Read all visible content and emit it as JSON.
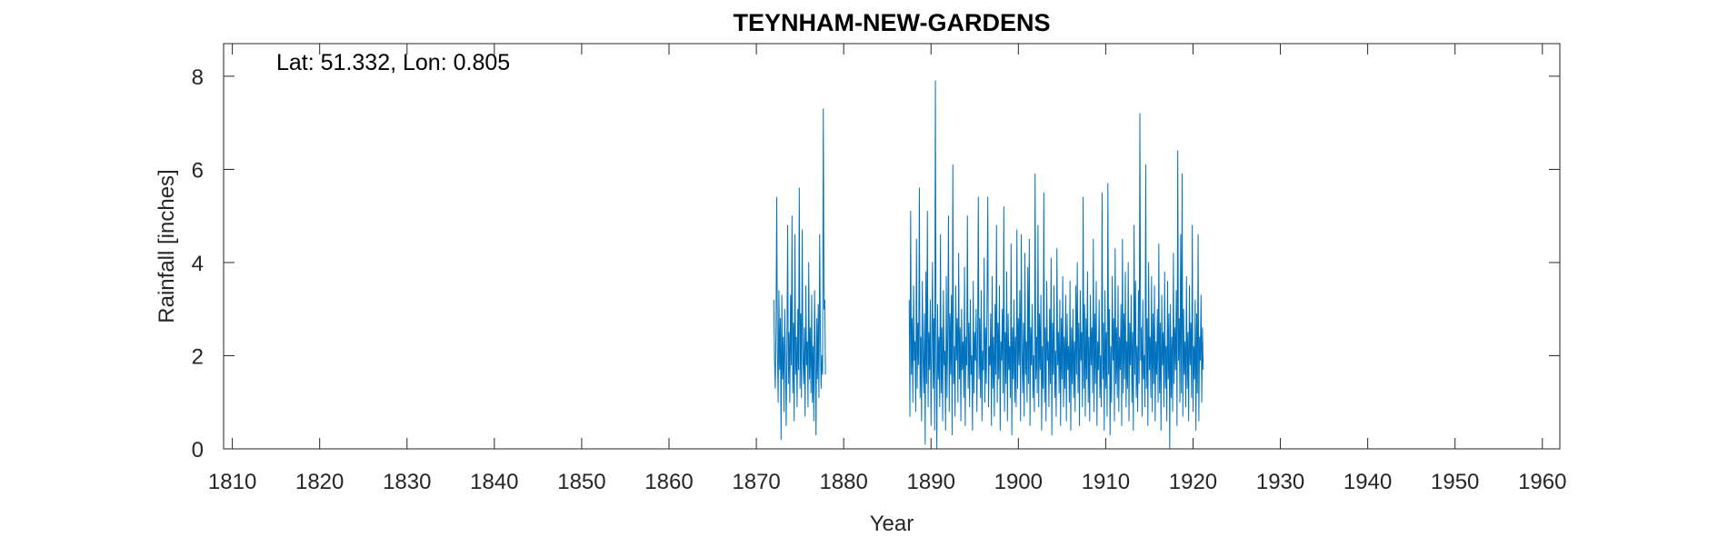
{
  "chart_data": {
    "type": "line",
    "title": "TEYNHAM-NEW-GARDENS",
    "xlabel": "Year",
    "ylabel": "Rainfall [inches]",
    "annotation": "Lat: 51.332, Lon: 0.805",
    "xlim": [
      1809,
      1962
    ],
    "ylim": [
      0,
      8.7
    ],
    "x_ticks": [
      1810,
      1820,
      1830,
      1840,
      1850,
      1860,
      1870,
      1880,
      1890,
      1900,
      1910,
      1920,
      1930,
      1940,
      1950,
      1960
    ],
    "y_ticks": [
      0,
      2,
      4,
      6,
      8
    ],
    "grid": false,
    "line_color": "#0072BD",
    "series": [
      {
        "segments": [
          {
            "start": 1872.0,
            "step": 0.083333,
            "values": [
              3.2,
              1.9,
              1.3,
              2.6,
              5.4,
              2.1,
              1.0,
              3.4,
              1.7,
              2.8,
              0.2,
              3.3,
              1.5,
              2.4,
              0.8,
              3.0,
              1.9,
              0.5,
              2.2,
              4.8,
              1.4,
              2.5,
              1.0,
              3.3,
              1.8,
              5.0,
              1.2,
              2.7,
              0.6,
              4.6,
              1.6,
              2.4,
              0.9,
              3.0,
              1.7,
              5.6,
              1.3,
              2.9,
              1.1,
              4.7,
              2.0,
              1.4,
              2.6,
              0.7,
              3.5,
              1.8,
              2.3,
              0.9,
              4.0,
              1.5,
              2.6,
              1.2,
              3.3,
              1.0,
              2.2,
              0.6,
              3.4,
              1.9,
              0.3,
              2.8,
              1.5,
              3.1,
              1.1,
              4.6,
              2.4,
              1.3,
              2.0,
              1.6,
              7.3,
              3.0,
              3.2,
              1.6
            ]
          },
          {
            "start": 1887.5,
            "step": 0.083333,
            "values": [
              3.2,
              0.7,
              5.1,
              1.6,
              2.8,
              1.0,
              3.5,
              1.9,
              2.3,
              0.8,
              4.5,
              1.3,
              2.7,
              1.8,
              5.6,
              1.1,
              2.4,
              0.6,
              3.6,
              2.0,
              1.2,
              2.9,
              0.1,
              3.8,
              1.4,
              5.1,
              0.9,
              2.5,
              1.7,
              3.2,
              0.5,
              2.2,
              4.0,
              1.3,
              2.8,
              0.4,
              7.9,
              1.9,
              0.0,
              3.1,
              1.5,
              2.4,
              0.9,
              4.6,
              1.2,
              2.6,
              0.6,
              3.4,
              1.8,
              2.1,
              0.4,
              3.7,
              1.1,
              2.5,
              5.0,
              0.8,
              2.9,
              1.6,
              3.3,
              0.3,
              6.1,
              1.4,
              2.2,
              0.7,
              3.5,
              1.9,
              2.8,
              1.0,
              4.2,
              1.5,
              2.6,
              0.6,
              3.0,
              1.7,
              2.3,
              1.1,
              3.9,
              0.5,
              2.4,
              1.8,
              5.0,
              1.3,
              2.7,
              0.9,
              3.2,
              1.6,
              2.0,
              0.4,
              3.6,
              1.2,
              2.5,
              1.9,
              3.0,
              0.8,
              2.3,
              5.4,
              1.5,
              2.8,
              1.1,
              3.4,
              0.6,
              2.1,
              1.7,
              4.1,
              1.0,
              2.6,
              1.4,
              3.3,
              5.4,
              0.9,
              2.2,
              1.8,
              2.9,
              0.5,
              3.7,
              1.3,
              2.4,
              0.7,
              3.1,
              1.6,
              4.8,
              1.0,
              2.7,
              1.5,
              3.5,
              0.4,
              2.3,
              1.9,
              3.0,
              1.2,
              5.2,
              0.8,
              2.5,
              1.4,
              3.8,
              0.6,
              2.9,
              1.7,
              2.2,
              1.1,
              4.4,
              0.3,
              2.6,
              1.5,
              3.2,
              1.0,
              2.4,
              0.9,
              4.7,
              1.3,
              2.8,
              1.8,
              3.4,
              0.6,
              4.6,
              2.1,
              1.2,
              2.7,
              0.7,
              4.2,
              1.6,
              2.3,
              1.0,
              3.9,
              1.4,
              4.5,
              0.5,
              2.6,
              1.8,
              3.1,
              1.1,
              2.0,
              0.8,
              5.9,
              1.5,
              2.4,
              1.2,
              4.8,
              0.9,
              2.9,
              1.7,
              3.3,
              0.4,
              2.2,
              1.3,
              5.5,
              1.0,
              2.6,
              0.6,
              3.6,
              1.9,
              2.3,
              0.9,
              3.0,
              1.4,
              4.1,
              0.3,
              2.7,
              1.6,
              3.5,
              1.1,
              2.1,
              0.7,
              4.3,
              1.8,
              2.5,
              1.2,
              3.2,
              0.5,
              2.8,
              1.5,
              3.7,
              0.9,
              2.4,
              1.3,
              3.3,
              0.6,
              2.9,
              1.7,
              2.2,
              1.0,
              3.6,
              0.4,
              2.6,
              1.4,
              3.0,
              1.1,
              2.3,
              0.8,
              3.5,
              1.6,
              4.0,
              1.2,
              2.7,
              0.5,
              3.4,
              1.9,
              2.5,
              0.9,
              5.4,
              1.3,
              3.1,
              0.7,
              2.8,
              1.5,
              3.8,
              1.0,
              2.4,
              0.6,
              3.3,
              1.8,
              2.6,
              1.2,
              4.5,
              0.8,
              2.9,
              1.4,
              3.6,
              0.5,
              2.3,
              1.7,
              3.2,
              1.1,
              2.0,
              0.9,
              5.5,
              1.5,
              2.7,
              0.4,
              3.4,
              1.3,
              2.5,
              0.7,
              5.7,
              1.6,
              3.0,
              0.3,
              2.2,
              1.0,
              3.7,
              1.9,
              2.8,
              0.6,
              4.3,
              1.4,
              2.6,
              1.1,
              3.5,
              0.8,
              2.4,
              1.7,
              3.1,
              0.5,
              4.5,
              1.2,
              2.9,
              1.5,
              3.8,
              0.9,
              2.3,
              1.3,
              4.0,
              0.6,
              2.7,
              1.8,
              3.3,
              1.0,
              2.5,
              0.4,
              4.8,
              1.6,
              3.6,
              1.1,
              2.2,
              0.8,
              3.4,
              1.4,
              7.2,
              1.9,
              2.6,
              0.7,
              3.2,
              1.5,
              2.0,
              0.9,
              6.1,
              1.3,
              2.8,
              0.5,
              4.0,
              1.7,
              2.4,
              1.1,
              3.7,
              0.8,
              2.9,
              1.4,
              3.5,
              0.6,
              2.3,
              1.6,
              3.0,
              1.0,
              4.4,
              1.2,
              2.7,
              0.4,
              3.3,
              1.8,
              2.5,
              0.9,
              3.8,
              1.3,
              2.2,
              0.6,
              3.6,
              1.5,
              2.9,
              0.0,
              3.1,
              1.1,
              2.4,
              0.8,
              4.2,
              1.4,
              2.6,
              1.7,
              3.4,
              0.5,
              6.4,
              1.9,
              2.8,
              1.0,
              4.6,
              1.2,
              5.9,
              0.7,
              3.0,
              1.6,
              2.3,
              0.9,
              3.7,
              1.3,
              2.5,
              0.6,
              3.5,
              1.8,
              2.7,
              1.1,
              4.8,
              0.8,
              2.2,
              1.5,
              3.2,
              0.4,
              2.9,
              1.2,
              4.6,
              0.6,
              2.4,
              1.9,
              3.3,
              1.0,
              2.6,
              1.7
            ]
          }
        ]
      }
    ]
  }
}
